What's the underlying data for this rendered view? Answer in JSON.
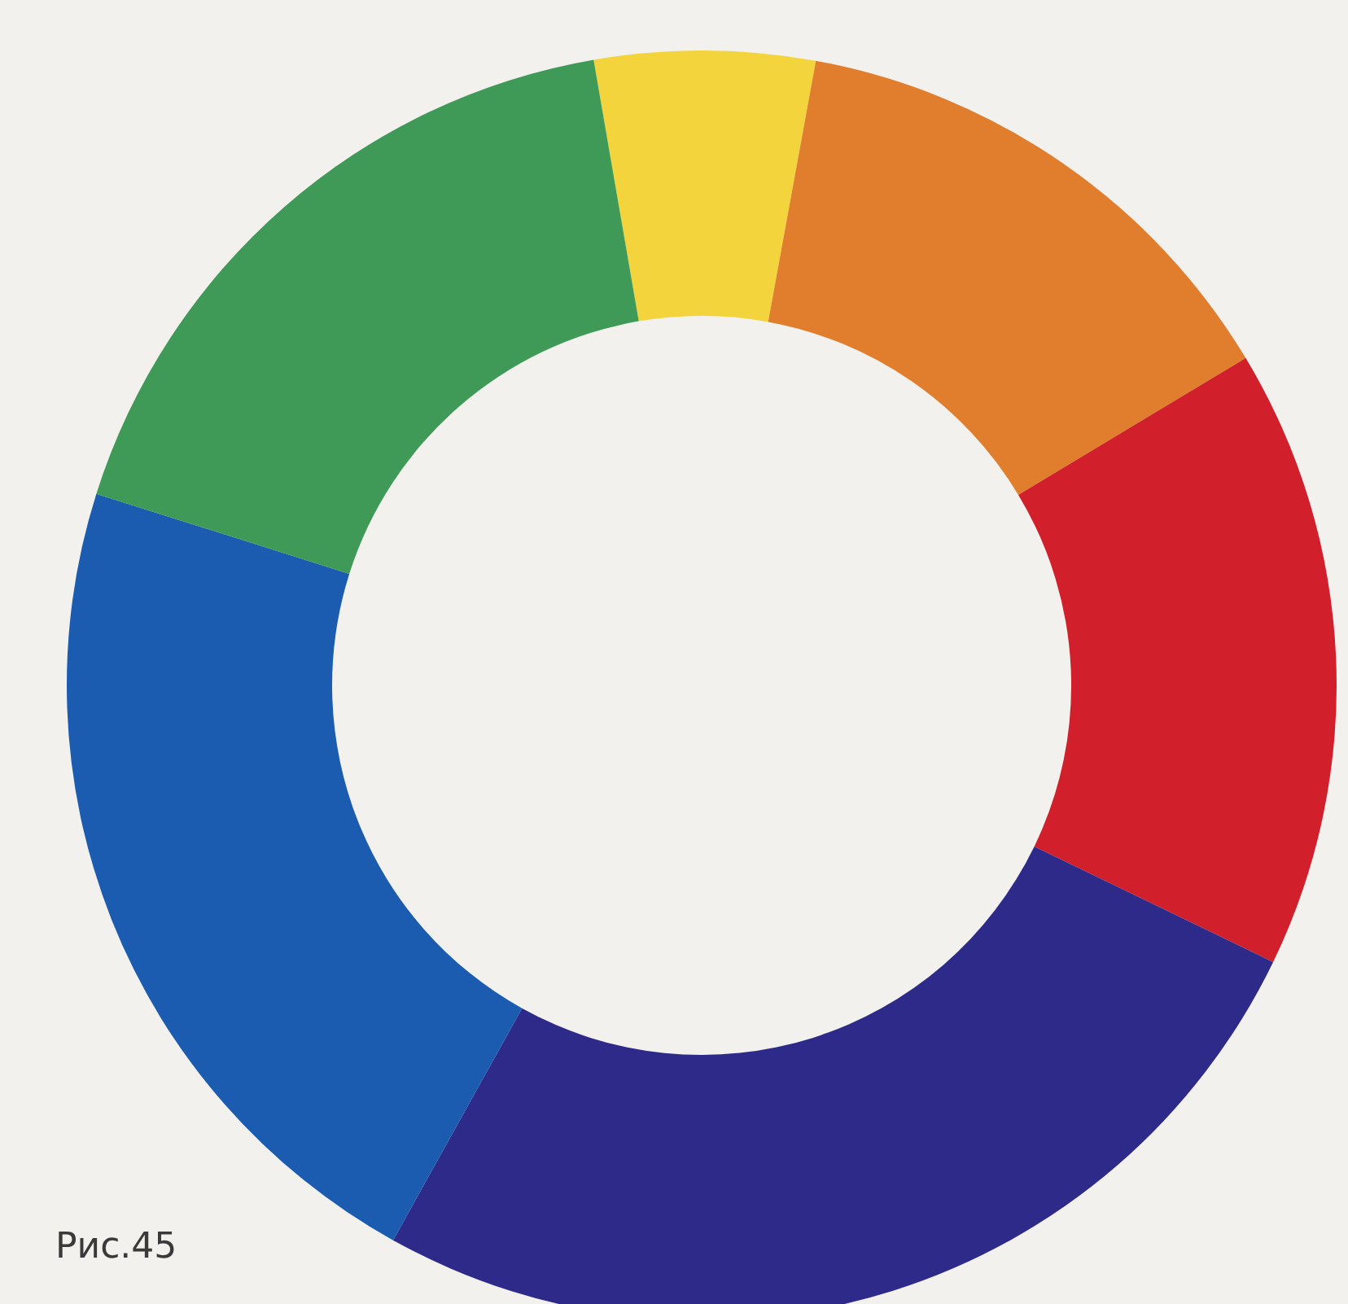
{
  "chart_data": {
    "type": "donut",
    "categories": [
      null,
      null,
      null,
      null,
      null,
      null
    ],
    "values": [
      5.6,
      13.5,
      15.8,
      25.9,
      21.8,
      17.4
    ],
    "colors": [
      "#f3d43c",
      "#e17e2e",
      "#d11f2c",
      "#2d2a8a",
      "#1b5cb0",
      "#3f9a58"
    ],
    "annotations": [
      "Рис.45"
    ]
  }
}
